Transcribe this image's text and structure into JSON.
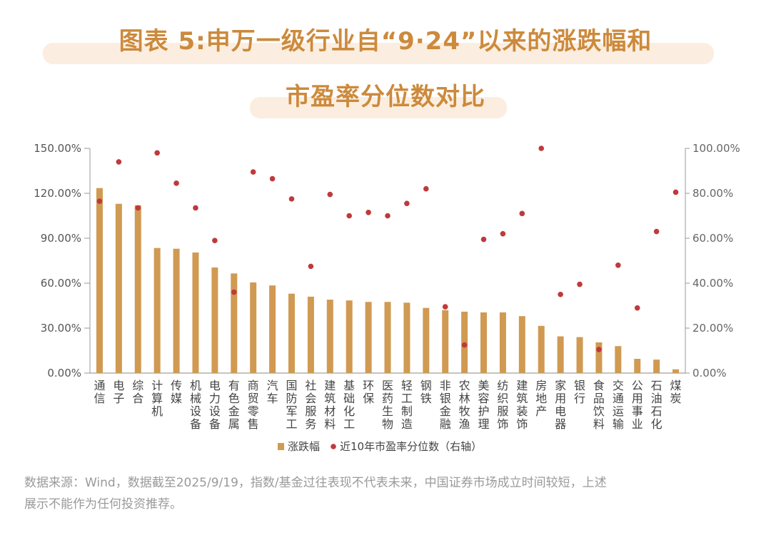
{
  "header": {
    "title_line1": "图表 5:申万一级行业自“9·24”以来的涨跌幅和",
    "title_line2": "市盈率分位数对比"
  },
  "chart_data": {
    "type": "bar",
    "categories": [
      "通信",
      "电子",
      "综合",
      "计算机",
      "传媒",
      "机械设备",
      "电力设备",
      "有色金属",
      "商贸零售",
      "汽车",
      "国防军工",
      "社会服务",
      "建筑材料",
      "基础化工",
      "环保",
      "医药生物",
      "轻工制造",
      "钢铁",
      "非银金融",
      "农林牧渔",
      "美容护理",
      "纺织服饰",
      "建筑装饰",
      "房地产",
      "家用电器",
      "银行",
      "食品饮料",
      "交通运输",
      "公用事业",
      "石油石化",
      "煤炭"
    ],
    "series": [
      {
        "name": "涨跌幅",
        "type": "bar",
        "axis": "left",
        "color": "#d09a52",
        "values": [
          123.5,
          113,
          112,
          83.5,
          83,
          80.5,
          70.5,
          66.5,
          60.5,
          58.5,
          53,
          51,
          49,
          48.5,
          47.5,
          47.5,
          47,
          43.5,
          42,
          41,
          40.5,
          40.5,
          38,
          31.5,
          24.5,
          24,
          20.5,
          18,
          9.5,
          9,
          2.5
        ]
      },
      {
        "name": "近10年市盈率分位数（右轴）",
        "type": "scatter",
        "axis": "right",
        "color": "#c0393b",
        "values": [
          76.5,
          94,
          73.5,
          98,
          84.5,
          73.5,
          59,
          36,
          89.5,
          86.5,
          77.5,
          47.5,
          79.5,
          70,
          71.5,
          70,
          75.5,
          82,
          29.5,
          12.5,
          59.5,
          62,
          71,
          100,
          35,
          39.5,
          10.5,
          48,
          29,
          63,
          80.5
        ]
      }
    ],
    "y_left": {
      "ticks": [
        "0.00%",
        "30.00%",
        "60.00%",
        "90.00%",
        "120.00%",
        "150.00%"
      ],
      "ylim": [
        0,
        150
      ]
    },
    "y_right": {
      "ticks": [
        "0.00%",
        "20.00%",
        "40.00%",
        "60.00%",
        "80.00%",
        "100.00%"
      ],
      "ylim": [
        0,
        100
      ]
    },
    "grid": false,
    "legend_position": "bottom-center"
  },
  "footnote": {
    "line1": "数据来源：Wind，数据截至2025/9/19，指数/基金过往表现不代表未来，中国证券市场成立时间较短，上述",
    "line2": "展示不能作为任何投资推荐。"
  }
}
